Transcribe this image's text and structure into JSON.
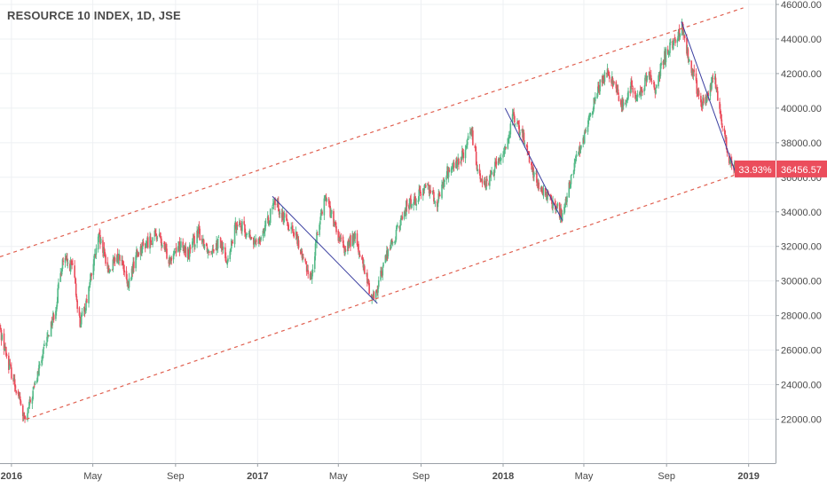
{
  "chart_data": {
    "type": "candlestick",
    "title": "RESOURCE 10 INDEX, 1D, JSE",
    "x_range": [
      "2015-12-15",
      "2019-02-10"
    ],
    "y_range": [
      21000,
      46000
    ],
    "y_ticks": [
      "22000.00",
      "24000.00",
      "26000.00",
      "28000.00",
      "30000.00",
      "32000.00",
      "34000.00",
      "36000.00",
      "38000.00",
      "40000.00",
      "42000.00",
      "44000.00",
      "46000.00"
    ],
    "x_ticks": [
      {
        "date": "2016-01-01",
        "label": "2016",
        "bold": true
      },
      {
        "date": "2016-05-01",
        "label": "May",
        "bold": false
      },
      {
        "date": "2016-09-01",
        "label": "Sep",
        "bold": false
      },
      {
        "date": "2017-01-01",
        "label": "2017",
        "bold": true
      },
      {
        "date": "2017-05-01",
        "label": "May",
        "bold": false
      },
      {
        "date": "2017-09-01",
        "label": "Sep",
        "bold": false
      },
      {
        "date": "2018-01-01",
        "label": "2018",
        "bold": true
      },
      {
        "date": "2018-05-01",
        "label": "May",
        "bold": false
      },
      {
        "date": "2018-09-01",
        "label": "Sep",
        "bold": false
      },
      {
        "date": "2019-01-01",
        "label": "2019",
        "bold": true
      }
    ],
    "grid": true,
    "price_path": [
      [
        "2015-12-15",
        27200
      ],
      [
        "2015-12-28",
        25200
      ],
      [
        "2016-01-12",
        23300
      ],
      [
        "2016-01-21",
        21800
      ],
      [
        "2016-02-05",
        24000
      ],
      [
        "2016-02-22",
        26500
      ],
      [
        "2016-03-07",
        28500
      ],
      [
        "2016-03-17",
        31200
      ],
      [
        "2016-04-01",
        30800
      ],
      [
        "2016-04-12",
        27500
      ],
      [
        "2016-04-20",
        28600
      ],
      [
        "2016-05-02",
        31000
      ],
      [
        "2016-05-10",
        32500
      ],
      [
        "2016-05-25",
        30600
      ],
      [
        "2016-06-10",
        31500
      ],
      [
        "2016-06-22",
        29600
      ],
      [
        "2016-07-05",
        31600
      ],
      [
        "2016-07-20",
        32200
      ],
      [
        "2016-08-05",
        32700
      ],
      [
        "2016-08-22",
        31300
      ],
      [
        "2016-09-05",
        32100
      ],
      [
        "2016-09-20",
        31600
      ],
      [
        "2016-10-05",
        32800
      ],
      [
        "2016-10-20",
        31800
      ],
      [
        "2016-11-05",
        32300
      ],
      [
        "2016-11-18",
        31100
      ],
      [
        "2016-12-01",
        33500
      ],
      [
        "2016-12-15",
        32800
      ],
      [
        "2016-12-28",
        32100
      ],
      [
        "2017-01-15",
        33300
      ],
      [
        "2017-01-27",
        34600
      ],
      [
        "2017-02-10",
        33600
      ],
      [
        "2017-02-25",
        32800
      ],
      [
        "2017-03-10",
        31200
      ],
      [
        "2017-03-22",
        30200
      ],
      [
        "2017-04-03",
        33600
      ],
      [
        "2017-04-12",
        35000
      ],
      [
        "2017-04-28",
        32800
      ],
      [
        "2017-05-10",
        31800
      ],
      [
        "2017-05-25",
        32600
      ],
      [
        "2017-06-06",
        31000
      ],
      [
        "2017-06-20",
        29000
      ],
      [
        "2017-06-28",
        29600
      ],
      [
        "2017-07-12",
        31600
      ],
      [
        "2017-07-25",
        32600
      ],
      [
        "2017-08-10",
        34300
      ],
      [
        "2017-08-25",
        34800
      ],
      [
        "2017-09-10",
        35600
      ],
      [
        "2017-09-25",
        34600
      ],
      [
        "2017-10-10",
        36300
      ],
      [
        "2017-10-25",
        36800
      ],
      [
        "2017-11-05",
        37500
      ],
      [
        "2017-11-15",
        38600
      ],
      [
        "2017-11-25",
        36300
      ],
      [
        "2017-12-08",
        35500
      ],
      [
        "2017-12-20",
        36600
      ],
      [
        "2018-01-05",
        37800
      ],
      [
        "2018-01-15",
        39400
      ],
      [
        "2018-02-01",
        38300
      ],
      [
        "2018-02-12",
        36600
      ],
      [
        "2018-02-25",
        35300
      ],
      [
        "2018-03-10",
        34700
      ],
      [
        "2018-03-22",
        34300
      ],
      [
        "2018-03-29",
        33600
      ],
      [
        "2018-04-10",
        35600
      ],
      [
        "2018-04-22",
        37500
      ],
      [
        "2018-05-05",
        38600
      ],
      [
        "2018-05-15",
        40300
      ],
      [
        "2018-05-25",
        41300
      ],
      [
        "2018-06-05",
        42300
      ],
      [
        "2018-06-18",
        41000
      ],
      [
        "2018-06-28",
        40200
      ],
      [
        "2018-07-10",
        41300
      ],
      [
        "2018-07-22",
        40500
      ],
      [
        "2018-08-05",
        42100
      ],
      [
        "2018-08-15",
        41000
      ],
      [
        "2018-08-25",
        42600
      ],
      [
        "2018-09-05",
        43600
      ],
      [
        "2018-09-15",
        44000
      ],
      [
        "2018-09-25",
        44800
      ],
      [
        "2018-10-05",
        42600
      ],
      [
        "2018-10-12",
        41800
      ],
      [
        "2018-10-22",
        40200
      ],
      [
        "2018-11-01",
        40600
      ],
      [
        "2018-11-10",
        41900
      ],
      [
        "2018-11-18",
        40400
      ],
      [
        "2018-11-25",
        38600
      ],
      [
        "2018-12-03",
        37000
      ],
      [
        "2018-12-08",
        36900
      ],
      [
        "2018-12-12",
        36460
      ]
    ],
    "channel_upper": [
      [
        "2015-12-15",
        31400
      ],
      [
        "2018-12-24",
        45800
      ]
    ],
    "channel_lower": [
      [
        "2016-01-23",
        22000
      ],
      [
        "2018-12-24",
        36300
      ]
    ],
    "trend_lines": [
      [
        [
          "2017-01-23",
          34900
        ],
        [
          "2017-06-28",
          28700
        ]
      ],
      [
        [
          "2018-01-04",
          40000
        ],
        [
          "2018-03-30",
          33500
        ]
      ],
      [
        [
          "2018-09-23",
          45000
        ],
        [
          "2018-12-15",
          36000
        ]
      ]
    ],
    "last_price": "36456.57",
    "last_change": "33.93%",
    "colors": {
      "up": "#53b987",
      "down": "#eb4d5c",
      "channel": "#e06050",
      "trend": "#3b3fa0",
      "grid": "#eef0f3",
      "axis_line": "#9aa0a6",
      "badge": "#eb4d5c"
    }
  }
}
